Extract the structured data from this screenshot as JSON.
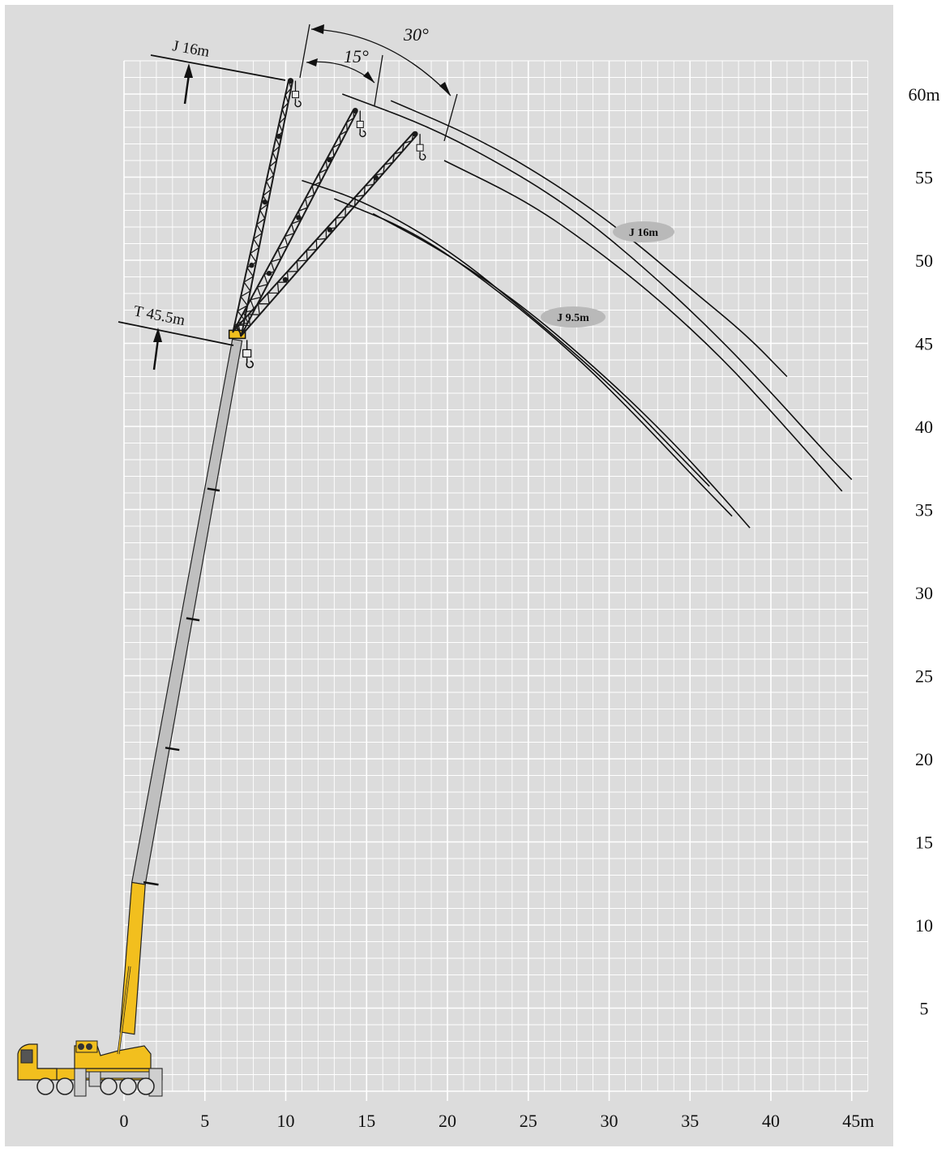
{
  "colors": {
    "background": "#dcdcdc",
    "grid": "#ffffff",
    "boom_base": "#f2bf1e",
    "boom_telescopic": "#bfbfbf",
    "jib": "#1a1a1a",
    "curve": "#111111",
    "badge": "#b9b9b9"
  },
  "icons": [
    "crane-truck-icon",
    "hook-icon",
    "arrow-up-icon"
  ],
  "chart_data": {
    "type": "line",
    "title": "",
    "xlabel": "",
    "ylabel": "",
    "xlim": [
      0,
      46
    ],
    "ylim": [
      0,
      62
    ],
    "x_ticks": [
      {
        "value": 0,
        "label": "0"
      },
      {
        "value": 5,
        "label": "5"
      },
      {
        "value": 10,
        "label": "10"
      },
      {
        "value": 15,
        "label": "15"
      },
      {
        "value": 20,
        "label": "20"
      },
      {
        "value": 25,
        "label": "25"
      },
      {
        "value": 30,
        "label": "30"
      },
      {
        "value": 35,
        "label": "35"
      },
      {
        "value": 40,
        "label": "40"
      },
      {
        "value": 45,
        "label": "45m"
      }
    ],
    "y_ticks": [
      {
        "value": 5,
        "label": "5"
      },
      {
        "value": 10,
        "label": "10"
      },
      {
        "value": 15,
        "label": "15"
      },
      {
        "value": 20,
        "label": "20"
      },
      {
        "value": 25,
        "label": "25"
      },
      {
        "value": 30,
        "label": "30"
      },
      {
        "value": 35,
        "label": "35"
      },
      {
        "value": 40,
        "label": "40"
      },
      {
        "value": 45,
        "label": "45"
      },
      {
        "value": 50,
        "label": "50"
      },
      {
        "value": 55,
        "label": "55"
      },
      {
        "value": 60,
        "label": "60m"
      }
    ],
    "grid": true,
    "main_boom": {
      "label": "T 45.5m",
      "pivot": [
        0.2,
        3.5
      ],
      "head": [
        7.0,
        45.2
      ],
      "yellow_to": [
        0.9,
        12.5
      ],
      "section_joints": [
        12.5,
        20.6,
        28.4,
        36.2
      ]
    },
    "jib_configs": [
      {
        "offset": "0°",
        "tip": [
          10.3,
          60.8
        ]
      },
      {
        "offset": "15°",
        "tip": [
          14.3,
          59.0
        ]
      },
      {
        "offset": "30°",
        "tip": [
          18.0,
          57.6
        ]
      }
    ],
    "annotations": {
      "boom_label": "T 45.5m",
      "jib_label": "J 16m",
      "angle_small": "15°",
      "angle_large": "30°"
    },
    "series": [
      {
        "name": "J 16m",
        "label": "J 16m",
        "curves": [
          [
            [
              16.5,
              59.6
            ],
            [
              22,
              57.3
            ],
            [
              27,
              54.4
            ],
            [
              31,
              51.6
            ],
            [
              35,
              48.3
            ],
            [
              38.5,
              45.5
            ],
            [
              41,
              43.0
            ]
          ],
          [
            [
              13.5,
              60.0
            ],
            [
              19,
              58.0
            ],
            [
              24,
              55.4
            ],
            [
              28,
              52.9
            ],
            [
              32,
              49.7
            ],
            [
              36,
              46.1
            ],
            [
              39.5,
              42.6
            ],
            [
              43.5,
              38.3
            ],
            [
              45,
              36.8
            ]
          ],
          [
            [
              19.8,
              56.0
            ],
            [
              25,
              53.5
            ],
            [
              29,
              50.8
            ],
            [
              33,
              47.7
            ],
            [
              37,
              44.1
            ],
            [
              40.5,
              40.4
            ],
            [
              44.4,
              36.1
            ]
          ]
        ]
      },
      {
        "name": "J 9.5m",
        "label": "J 9.5m",
        "curves": [
          [
            [
              11,
              54.8
            ],
            [
              15,
              53.5
            ],
            [
              20,
              50.7
            ],
            [
              25,
              46.8
            ],
            [
              30,
              42.6
            ],
            [
              34,
              38.6
            ],
            [
              36.2,
              36.4
            ]
          ],
          [
            [
              13,
              53.7
            ],
            [
              18,
              51.7
            ],
            [
              23,
              48.3
            ],
            [
              28,
              44.2
            ],
            [
              32,
              40.3
            ],
            [
              35,
              37.2
            ],
            [
              37.6,
              34.6
            ]
          ],
          [
            [
              15.4,
              52.8
            ],
            [
              20,
              50.4
            ],
            [
              25,
              47.0
            ],
            [
              30,
              42.8
            ],
            [
              34,
              39.0
            ],
            [
              37,
              35.8
            ],
            [
              38.7,
              33.9
            ]
          ]
        ]
      }
    ]
  }
}
